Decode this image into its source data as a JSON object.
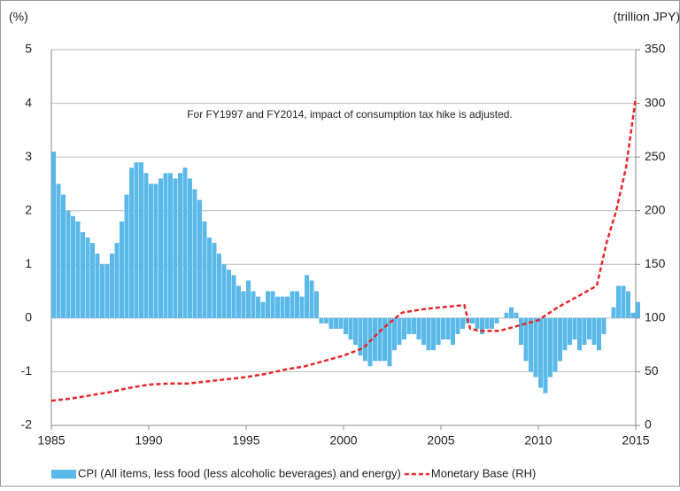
{
  "chart_data": {
    "type": "bar-line",
    "annotation": "For FY1997 and FY2014, impact of consumption tax hike is adjusted.",
    "y_label": "(%)",
    "y2_label": "(trillion JPY)",
    "xlim": [
      1985,
      2015
    ],
    "xticks": [
      1985,
      1990,
      1995,
      2000,
      2005,
      2010,
      2015
    ],
    "ylim": [
      -2,
      5
    ],
    "yticks": [
      -2,
      -1,
      0,
      1,
      2,
      3,
      4,
      5
    ],
    "y2lim": [
      0,
      350
    ],
    "y2ticks": [
      0,
      50,
      100,
      150,
      200,
      250,
      300,
      350
    ],
    "grid": true,
    "legend": "bottom",
    "series": [
      {
        "name": "CPI (All items, less food (less alcoholic beverages) and energy)",
        "type": "bar",
        "color": "#5ab9e8",
        "x": [
          1985,
          1985.25,
          1985.5,
          1985.75,
          1986,
          1986.25,
          1986.5,
          1986.75,
          1987,
          1987.25,
          1987.5,
          1987.75,
          1988,
          1988.25,
          1988.5,
          1988.75,
          1989,
          1989.25,
          1989.5,
          1989.75,
          1990,
          1990.25,
          1990.5,
          1990.75,
          1991,
          1991.25,
          1991.5,
          1991.75,
          1992,
          1992.25,
          1992.5,
          1992.75,
          1993,
          1993.25,
          1993.5,
          1993.75,
          1994,
          1994.25,
          1994.5,
          1994.75,
          1995,
          1995.25,
          1995.5,
          1995.75,
          1996,
          1996.25,
          1996.5,
          1996.75,
          1997,
          1997.25,
          1997.5,
          1997.75,
          1998,
          1998.25,
          1998.5,
          1998.75,
          1999,
          1999.25,
          1999.5,
          1999.75,
          2000,
          2000.25,
          2000.5,
          2000.75,
          2001,
          2001.25,
          2001.5,
          2001.75,
          2002,
          2002.25,
          2002.5,
          2002.75,
          2003,
          2003.25,
          2003.5,
          2003.75,
          2004,
          2004.25,
          2004.5,
          2004.75,
          2005,
          2005.25,
          2005.5,
          2005.75,
          2006,
          2006.25,
          2006.5,
          2006.75,
          2007,
          2007.25,
          2007.5,
          2007.75,
          2008,
          2008.25,
          2008.5,
          2008.75,
          2009,
          2009.25,
          2009.5,
          2009.75,
          2010,
          2010.25,
          2010.5,
          2010.75,
          2011,
          2011.25,
          2011.5,
          2011.75,
          2012,
          2012.25,
          2012.5,
          2012.75,
          2013,
          2013.25,
          2013.5,
          2013.75,
          2014,
          2014.25,
          2014.5,
          2014.75,
          2015
        ],
        "values": [
          3.1,
          2.5,
          2.3,
          2.0,
          1.9,
          1.8,
          1.6,
          1.5,
          1.4,
          1.2,
          1.0,
          1.0,
          1.2,
          1.4,
          1.8,
          2.3,
          2.8,
          2.9,
          2.9,
          2.7,
          2.5,
          2.5,
          2.6,
          2.7,
          2.7,
          2.6,
          2.7,
          2.8,
          2.6,
          2.4,
          2.2,
          1.8,
          1.5,
          1.4,
          1.2,
          1.0,
          0.9,
          0.8,
          0.6,
          0.5,
          0.7,
          0.5,
          0.4,
          0.3,
          0.5,
          0.5,
          0.4,
          0.4,
          0.4,
          0.5,
          0.5,
          0.4,
          0.8,
          0.7,
          0.5,
          -0.1,
          -0.1,
          -0.2,
          -0.2,
          -0.2,
          -0.3,
          -0.4,
          -0.5,
          -0.7,
          -0.8,
          -0.9,
          -0.8,
          -0.8,
          -0.8,
          -0.9,
          -0.6,
          -0.5,
          -0.4,
          -0.3,
          -0.3,
          -0.4,
          -0.5,
          -0.6,
          -0.6,
          -0.5,
          -0.4,
          -0.4,
          -0.5,
          -0.3,
          -0.2,
          -0.1,
          -0.1,
          -0.2,
          -0.3,
          -0.2,
          -0.2,
          -0.1,
          0.0,
          0.1,
          0.2,
          0.1,
          -0.5,
          -0.8,
          -1.0,
          -1.1,
          -1.3,
          -1.4,
          -1.1,
          -1.0,
          -0.8,
          -0.6,
          -0.5,
          -0.4,
          -0.6,
          -0.5,
          -0.4,
          -0.5,
          -0.6,
          -0.3,
          0.0,
          0.2,
          0.6,
          0.6,
          0.5,
          0.1,
          0.3
        ]
      },
      {
        "name": "Monetary Base (RH)",
        "type": "line",
        "axis": "y2",
        "color": "#e8262b",
        "x": [
          1985,
          1986,
          1987,
          1988,
          1989,
          1990,
          1991,
          1992,
          1993,
          1994,
          1995,
          1996,
          1997,
          1998,
          1999,
          2000,
          2001,
          2002,
          2003,
          2004,
          2005,
          2006.2,
          2006.5,
          2007,
          2008,
          2009,
          2010,
          2011,
          2012,
          2013,
          2013.5,
          2014,
          2014.5,
          2015
        ],
        "values": [
          23,
          25,
          28,
          31,
          35,
          38,
          39,
          39,
          41,
          43,
          45,
          48,
          52,
          55,
          60,
          65,
          72,
          90,
          105,
          108,
          110,
          112,
          90,
          88,
          88,
          93,
          98,
          110,
          120,
          130,
          170,
          200,
          240,
          305
        ]
      }
    ]
  }
}
